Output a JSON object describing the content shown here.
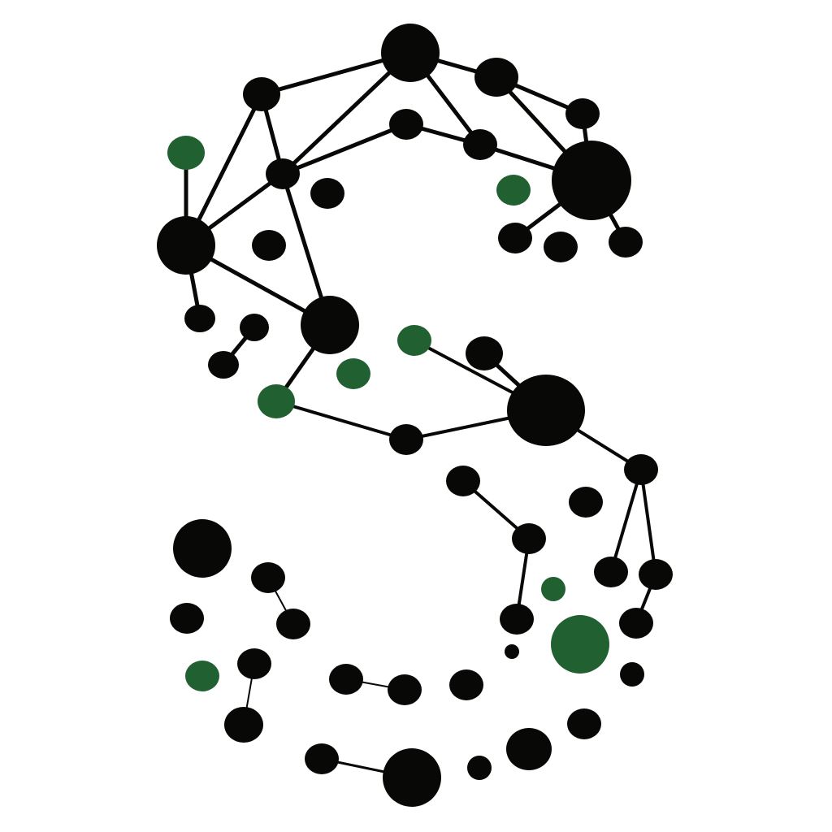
{
  "colors": {
    "background": "#ffffff",
    "node_black": "#080806",
    "node_green": "#216031",
    "edge": "#080806"
  },
  "graphic": {
    "shape": "letter-s-network",
    "node_count": 57,
    "edge_count": 35
  }
}
